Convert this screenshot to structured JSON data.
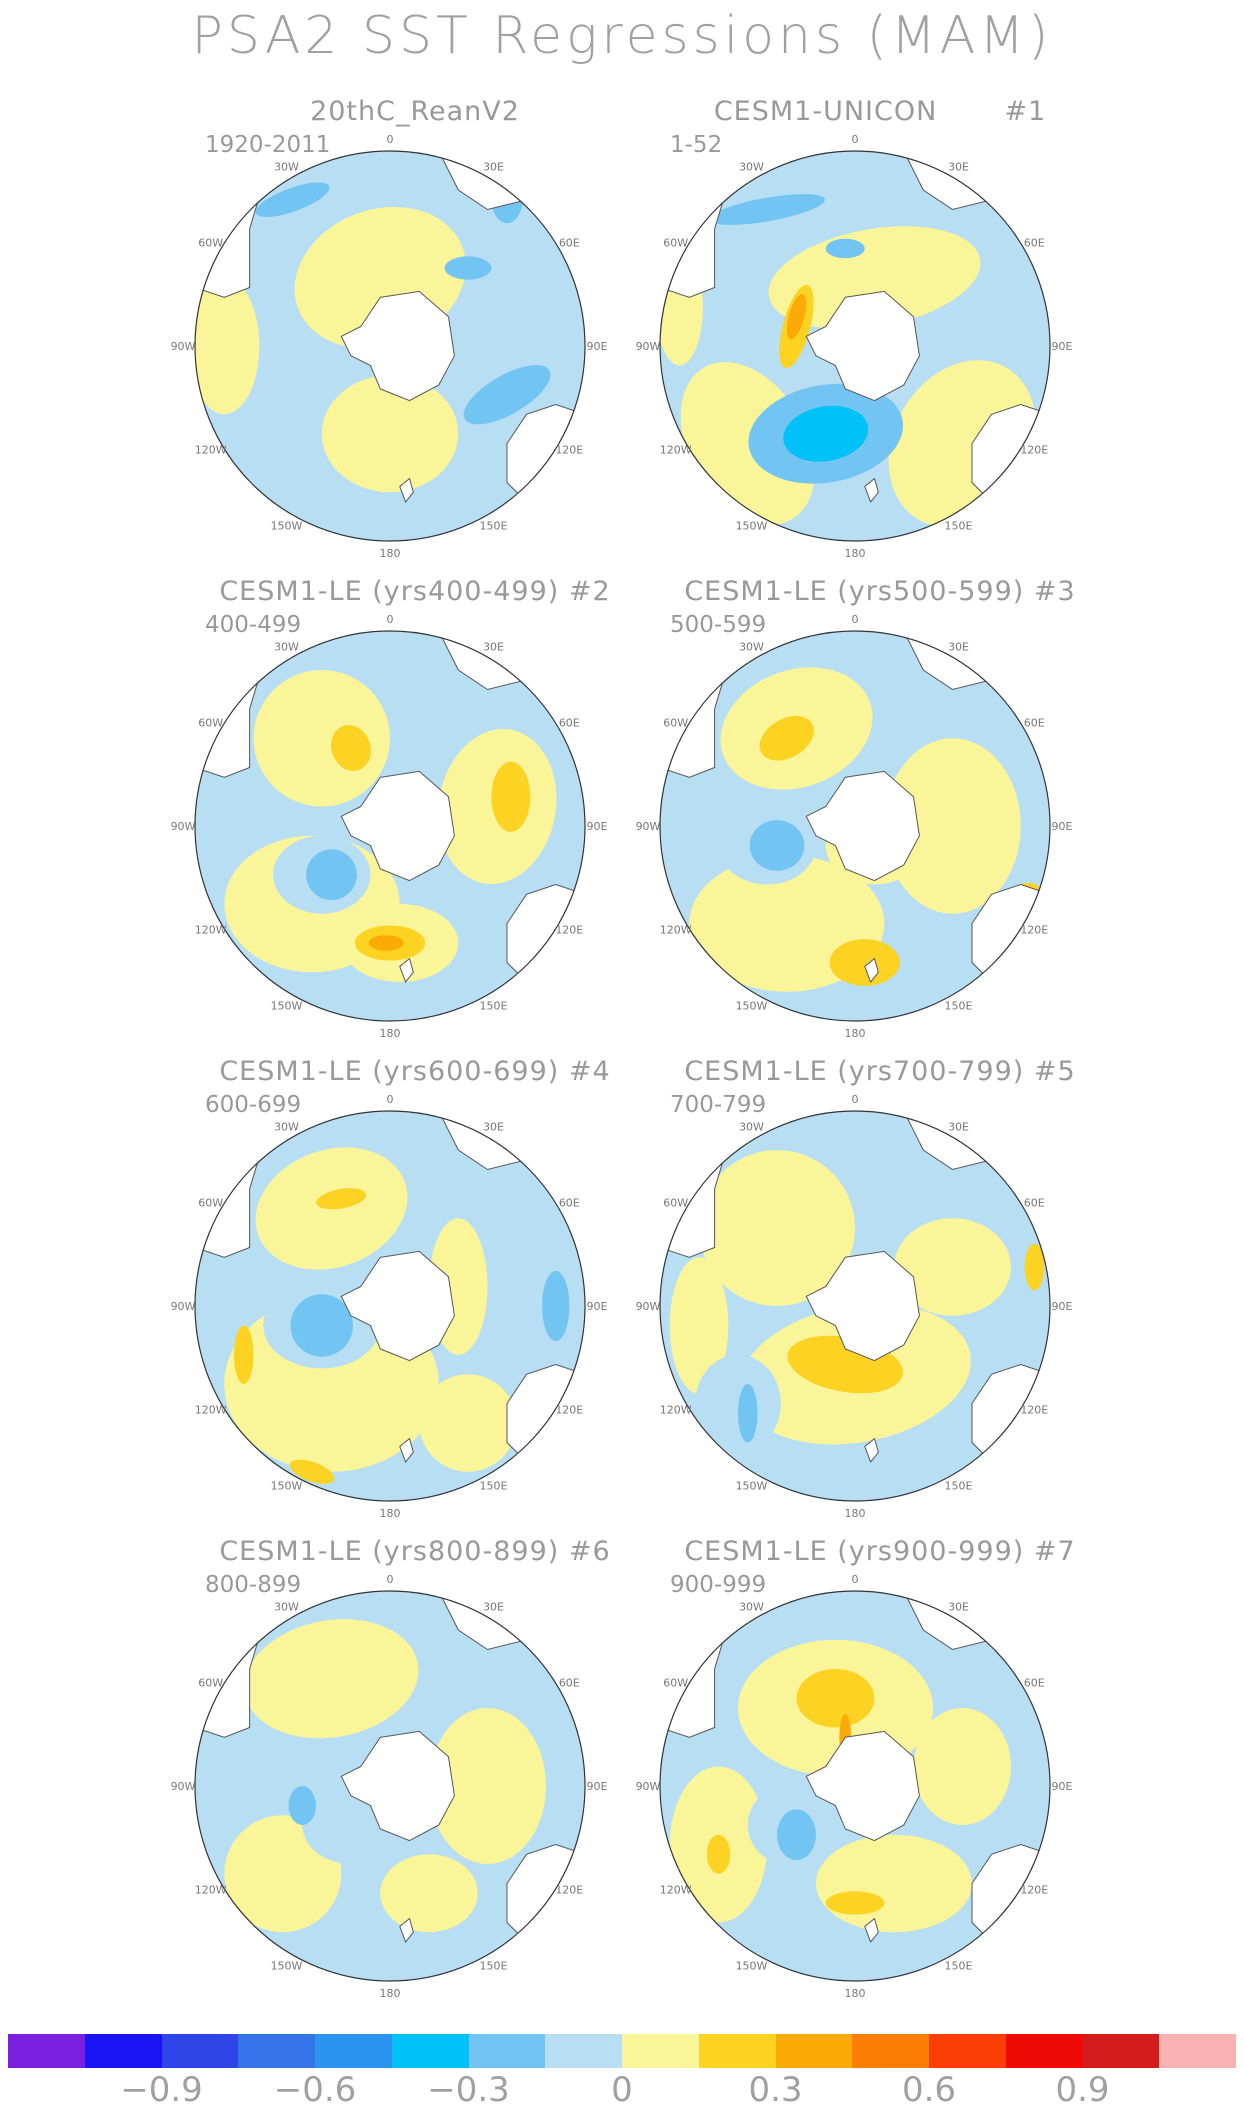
{
  "title": "PSA2 SST Regressions (MAM)",
  "panels": [
    {
      "title": "20thC_ReanV2",
      "years": "1920-2011",
      "pattern": "reanalysis"
    },
    {
      "title": "CESM1-UNICON       #1",
      "years": "1-52",
      "pattern": "unicon"
    },
    {
      "title": "CESM1-LE (yrs400-499) #2",
      "years": "400-499",
      "pattern": "le2"
    },
    {
      "title": "CESM1-LE (yrs500-599) #3",
      "years": "500-599",
      "pattern": "le3"
    },
    {
      "title": "CESM1-LE (yrs600-699) #4",
      "years": "600-699",
      "pattern": "le4"
    },
    {
      "title": "CESM1-LE (yrs700-799) #5",
      "years": "700-799",
      "pattern": "le5"
    },
    {
      "title": "CESM1-LE (yrs800-899) #6",
      "years": "800-899",
      "pattern": "le6"
    },
    {
      "title": "CESM1-LE (yrs900-999) #7",
      "years": "900-999",
      "pattern": "le7"
    }
  ],
  "longitude_labels": [
    "0",
    "30E",
    "60E",
    "90E",
    "120E",
    "150E",
    "180",
    "150W",
    "120W",
    "90W",
    "60W",
    "30W"
  ],
  "colorbar": {
    "colors": [
      "#7b1fe0",
      "#1a14f5",
      "#2e45e8",
      "#3473e8",
      "#2a94f0",
      "#00c2f8",
      "#72c4f2",
      "#b7def2",
      "#fbf59a",
      "#fcd323",
      "#fbaa08",
      "#fc7d04",
      "#fc3e06",
      "#f00a06",
      "#d41c1c",
      "#f9b2b2"
    ],
    "labels": [
      "−0.9",
      "−0.6",
      "−0.3",
      "0",
      "0.3",
      "0.6",
      "0.9"
    ]
  },
  "colors": {
    "land": "#ffffff",
    "neg_light": "#b7def2",
    "neg_mid": "#72c4f2",
    "neg_strong": "#00c2f8",
    "pos_light": "#fbf59a",
    "pos_mid": "#fcd323",
    "pos_strong": "#fbaa08",
    "pos_max": "#fc7d04"
  }
}
